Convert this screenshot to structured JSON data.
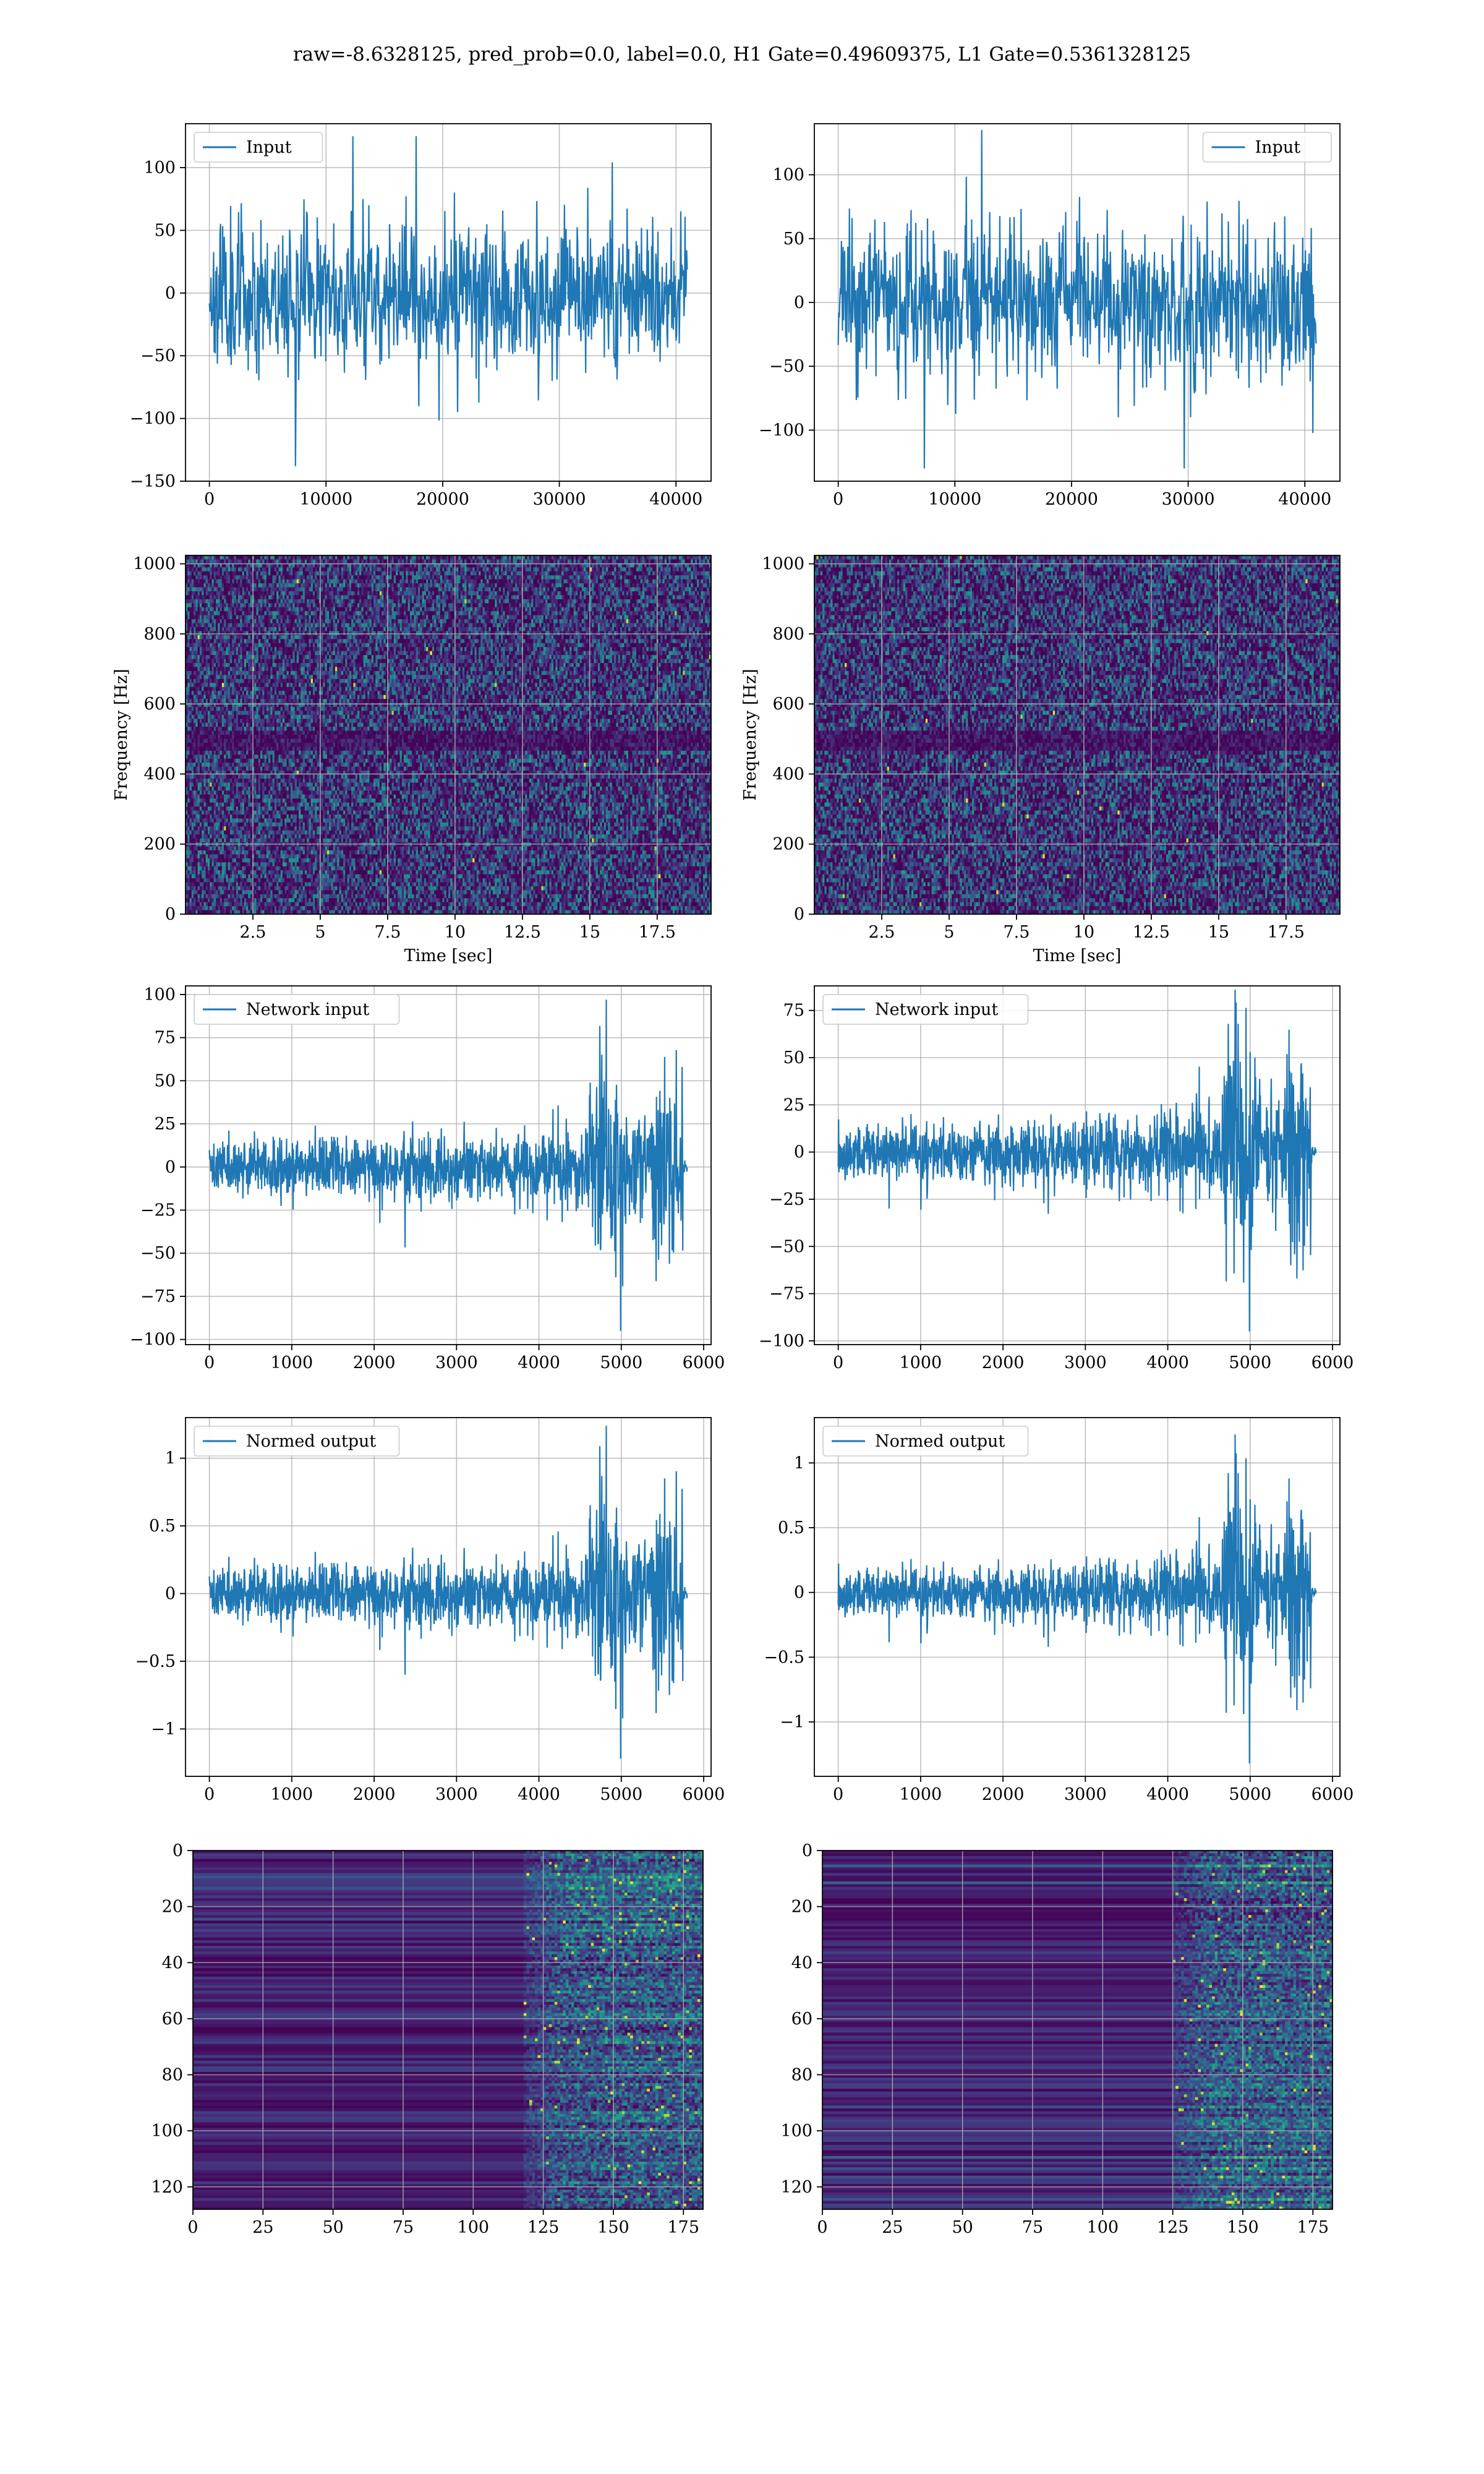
{
  "suptitle": "raw=-8.6328125, pred_prob=0.0, label=0.0, H1 Gate=0.49609375, L1 Gate=0.5361328125",
  "colors": {
    "line": "#1f77b4",
    "grid": "#b0b0b0",
    "axes": "#000000",
    "viridis_dark": "#440154",
    "viridis_yellow": "#fde725"
  },
  "chart_data": [
    {
      "type": "line",
      "id": "input-h1",
      "legend": [
        "Input"
      ],
      "legend_loc": "upper-left",
      "xlim": [
        -2048,
        43008
      ],
      "ylim": [
        -150,
        135
      ],
      "xticks": [
        0,
        10000,
        20000,
        30000,
        40000
      ],
      "yticks": [
        -150,
        -100,
        -50,
        0,
        50,
        100
      ],
      "x_range": [
        0,
        40960
      ],
      "signal": {
        "kind": "noise",
        "n": 900,
        "sd": 30,
        "max": 125,
        "min": -138,
        "burst_from": null,
        "seed": 11
      },
      "grid": true
    },
    {
      "type": "line",
      "id": "input-l1",
      "legend": [
        "Input"
      ],
      "legend_loc": "upper-right",
      "xlim": [
        -2048,
        43008
      ],
      "ylim": [
        -140,
        140
      ],
      "xticks": [
        0,
        10000,
        20000,
        30000,
        40000
      ],
      "yticks": [
        -100,
        -50,
        0,
        50,
        100
      ],
      "x_range": [
        0,
        40960
      ],
      "signal": {
        "kind": "noise",
        "n": 900,
        "sd": 30,
        "max": 135,
        "min": -130,
        "burst_from": null,
        "seed": 23
      },
      "grid": true
    },
    {
      "type": "heatmap",
      "id": "spec-h1",
      "xlabel": "Time [sec]",
      "ylabel": "Frequency [Hz]",
      "xlim": [
        0,
        19.5
      ],
      "ylim": [
        0,
        1024
      ],
      "xticks": [
        2.5,
        5.0,
        7.5,
        10.0,
        12.5,
        15.0,
        17.5
      ],
      "yticks": [
        0,
        200,
        400,
        600,
        800,
        1000
      ],
      "cols": 260,
      "rows": 90,
      "seed": 5,
      "dark_band_hz": [
        465,
        520
      ],
      "grid": true
    },
    {
      "type": "heatmap",
      "id": "spec-l1",
      "xlabel": "Time [sec]",
      "ylabel": "Frequency [Hz]",
      "xlim": [
        0,
        19.5
      ],
      "ylim": [
        0,
        1024
      ],
      "xticks": [
        2.5,
        5.0,
        7.5,
        10.0,
        12.5,
        15.0,
        17.5
      ],
      "yticks": [
        0,
        200,
        400,
        600,
        800,
        1000
      ],
      "cols": 260,
      "rows": 90,
      "seed": 9,
      "dark_band_hz": [
        465,
        520
      ],
      "grid": true
    },
    {
      "type": "line",
      "id": "netinput-h1",
      "legend": [
        "Network input"
      ],
      "legend_loc": "upper-left",
      "xlim": [
        -290,
        6090
      ],
      "ylim": [
        -103,
        105
      ],
      "xticks": [
        0,
        1000,
        2000,
        3000,
        4000,
        5000,
        6000
      ],
      "yticks": [
        -100,
        -75,
        -50,
        -25,
        0,
        25,
        50,
        75,
        100
      ],
      "x_range": [
        0,
        5800
      ],
      "signal": {
        "kind": "chirp",
        "n": 1400,
        "base_sd": 7,
        "burst_from": 4600,
        "burst_to": 5750,
        "burst_sd": 30,
        "tail_to": 5800,
        "max": 97,
        "min": -95,
        "seed": 31
      },
      "grid": true
    },
    {
      "type": "line",
      "id": "netinput-l1",
      "legend": [
        "Network input"
      ],
      "legend_loc": "upper-left",
      "xlim": [
        -290,
        6090
      ],
      "ylim": [
        -102,
        88
      ],
      "xticks": [
        0,
        1000,
        2000,
        3000,
        4000,
        5000,
        6000
      ],
      "yticks": [
        -100,
        -75,
        -50,
        -25,
        0,
        25,
        50,
        75
      ],
      "x_range": [
        0,
        5800
      ],
      "signal": {
        "kind": "chirp",
        "n": 1400,
        "base_sd": 7,
        "burst_from": 4650,
        "burst_to": 5750,
        "burst_sd": 28,
        "tail_to": 5800,
        "max": 86,
        "min": -95,
        "seed": 37
      },
      "grid": true
    },
    {
      "type": "line",
      "id": "normed-h1",
      "legend": [
        "Normed output"
      ],
      "legend_loc": "upper-left",
      "xlim": [
        -290,
        6090
      ],
      "ylim": [
        -1.35,
        1.3
      ],
      "xticks": [
        0,
        1000,
        2000,
        3000,
        4000,
        5000,
        6000
      ],
      "yticks": [
        -1.0,
        -0.5,
        0.0,
        0.5,
        1.0
      ],
      "x_range": [
        0,
        5800
      ],
      "signal": {
        "kind": "chirp",
        "n": 1400,
        "base_sd": 0.09,
        "burst_from": 4600,
        "burst_to": 5750,
        "burst_sd": 0.4,
        "tail_to": 5800,
        "max": 1.24,
        "min": -1.22,
        "seed": 31
      },
      "grid": true
    },
    {
      "type": "line",
      "id": "normed-l1",
      "legend": [
        "Normed output"
      ],
      "legend_loc": "upper-left",
      "xlim": [
        -290,
        6090
      ],
      "ylim": [
        -1.42,
        1.35
      ],
      "xticks": [
        0,
        1000,
        2000,
        3000,
        4000,
        5000,
        6000
      ],
      "yticks": [
        -1.0,
        -0.5,
        0.0,
        0.5,
        1.0
      ],
      "x_range": [
        0,
        5800
      ],
      "signal": {
        "kind": "chirp",
        "n": 1400,
        "base_sd": 0.09,
        "burst_from": 4650,
        "burst_to": 5750,
        "burst_sd": 0.38,
        "tail_to": 5800,
        "max": 1.22,
        "min": -1.32,
        "seed": 37
      },
      "grid": true
    },
    {
      "type": "heatmap",
      "id": "feat-h1",
      "xlim": [
        0,
        182
      ],
      "ylim": [
        128,
        0
      ],
      "xticks": [
        0,
        25,
        50,
        75,
        100,
        125,
        150,
        175
      ],
      "yticks": [
        0,
        20,
        40,
        60,
        80,
        100,
        120
      ],
      "cols": 182,
      "rows": 128,
      "seed": 41,
      "onset": 118,
      "grid": true
    },
    {
      "type": "heatmap",
      "id": "feat-l1",
      "xlim": [
        0,
        182
      ],
      "ylim": [
        128,
        0
      ],
      "xticks": [
        0,
        25,
        50,
        75,
        100,
        125,
        150,
        175
      ],
      "yticks": [
        0,
        20,
        40,
        60,
        80,
        100,
        120
      ],
      "cols": 182,
      "rows": 128,
      "seed": 53,
      "onset": 125,
      "grid": true
    }
  ]
}
